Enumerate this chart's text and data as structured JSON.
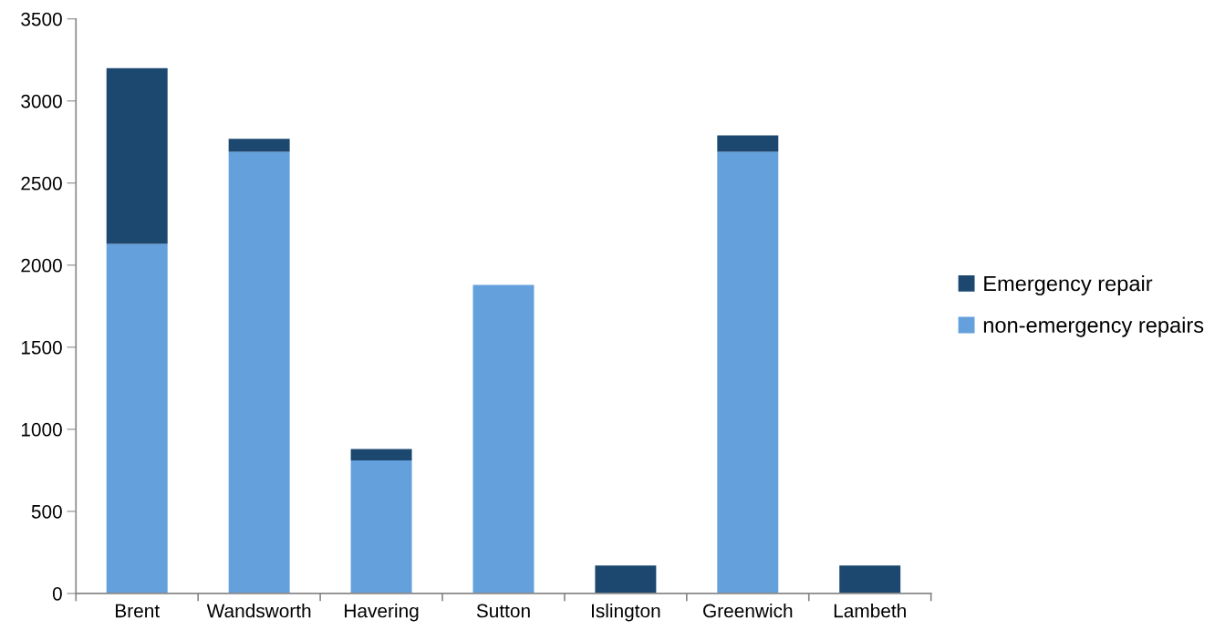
{
  "chart_data": {
    "type": "bar",
    "stacked": true,
    "categories": [
      "Brent",
      "Wandsworth",
      "Havering",
      "Sutton",
      "Islington",
      "Greenwich",
      "Lambeth"
    ],
    "series": [
      {
        "name": "non-emergency repairs",
        "color": "#64a0dc",
        "values": [
          2130,
          2690,
          810,
          1880,
          0,
          2690,
          0
        ]
      },
      {
        "name": "Emergency repair",
        "color": "#1c4870",
        "values": [
          1070,
          80,
          70,
          0,
          170,
          100,
          170
        ]
      }
    ],
    "ylim": [
      0,
      3500
    ],
    "yticks": [
      0,
      500,
      1000,
      1500,
      2000,
      2500,
      3000,
      3500
    ],
    "grid": false,
    "legend": "right"
  }
}
